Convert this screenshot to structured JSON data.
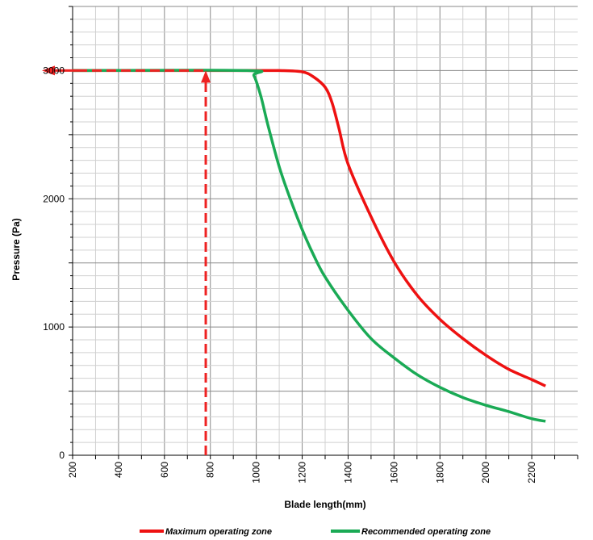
{
  "chart_data": {
    "type": "line",
    "xlabel": "Blade length(mm)",
    "ylabel": "Pressure (Pa)",
    "xlim": [
      200,
      2400
    ],
    "ylim": [
      0,
      3500
    ],
    "x_ticks": [
      200,
      400,
      600,
      800,
      1000,
      1200,
      1400,
      1600,
      1800,
      2000,
      2200
    ],
    "y_ticks": [
      0,
      1000,
      2000,
      3000
    ],
    "y_tick_labels": [
      "0",
      "1000",
      "2000",
      "3000"
    ],
    "grid": true,
    "legend_position": "bottom",
    "series": [
      {
        "name": "Maximum operating zone",
        "color": "#ee1111",
        "x": [
          200,
          1000,
          1100,
          1200,
          1250,
          1300,
          1330,
          1360,
          1400,
          1500,
          1600,
          1700,
          1800,
          1900,
          2000,
          2100,
          2200,
          2260
        ],
        "y": [
          3000,
          3000,
          3000,
          2990,
          2950,
          2870,
          2750,
          2550,
          2270,
          1860,
          1510,
          1250,
          1060,
          910,
          780,
          670,
          590,
          540
        ]
      },
      {
        "name": "Recommended operating zone",
        "color": "#1aaa55",
        "x": [
          200,
          960,
          990,
          1020,
          1050,
          1100,
          1150,
          1200,
          1250,
          1300,
          1400,
          1500,
          1600,
          1700,
          1800,
          1900,
          2000,
          2100,
          2200,
          2260
        ],
        "y": [
          3000,
          3000,
          2960,
          2800,
          2580,
          2250,
          1990,
          1760,
          1560,
          1390,
          1130,
          910,
          760,
          630,
          530,
          450,
          390,
          340,
          285,
          265
        ]
      }
    ],
    "reference_lines": {
      "color": "#ee2222",
      "style": "dashed",
      "x_value": 780,
      "y_value": 3000
    }
  }
}
